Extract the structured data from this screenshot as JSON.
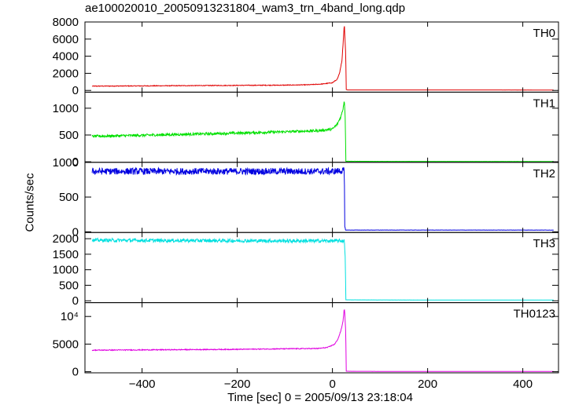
{
  "chart_data": {
    "type": "line",
    "title": "ae100020010_20050913231804_wam3_trn_4band_long.qdp",
    "xlabel": "Time [sec] 0 = 2005/09/13 23:18:04",
    "ylabel": "Counts/sec",
    "xlim": [
      -520,
      475
    ],
    "xticks": [
      -400,
      -200,
      0,
      200,
      400
    ],
    "xtick_labels": [
      "−400",
      "−200",
      "0",
      "200",
      "400"
    ],
    "grid": false,
    "panels": [
      {
        "name": "TH0",
        "color": "#e00000",
        "ylim": [
          -200,
          8000
        ],
        "yticks": [
          0,
          2000,
          4000,
          6000,
          8000
        ],
        "ytick_labels": [
          "0",
          "2000",
          "4000",
          "6000",
          "8000"
        ],
        "noise": 25,
        "series": [
          [
            -505,
            500
          ],
          [
            -400,
            530
          ],
          [
            -300,
            560
          ],
          [
            -200,
            590
          ],
          [
            -100,
            620
          ],
          [
            -50,
            660
          ],
          [
            -20,
            760
          ],
          [
            0,
            900
          ],
          [
            10,
            1300
          ],
          [
            15,
            2000
          ],
          [
            20,
            3500
          ],
          [
            23,
            6000
          ],
          [
            25,
            7800
          ],
          [
            26,
            6500
          ],
          [
            28,
            4000
          ],
          [
            29,
            100
          ],
          [
            32,
            60
          ],
          [
            100,
            60
          ],
          [
            300,
            55
          ],
          [
            465,
            50
          ]
        ]
      },
      {
        "name": "TH1",
        "color": "#00e000",
        "ylim": [
          -10,
          1300
        ],
        "yticks": [
          0,
          500,
          1000
        ],
        "ytick_labels": [
          "0",
          "500",
          "1000"
        ],
        "noise": 15,
        "series": [
          [
            -505,
            475
          ],
          [
            -400,
            495
          ],
          [
            -300,
            515
          ],
          [
            -200,
            535
          ],
          [
            -100,
            560
          ],
          [
            -30,
            580
          ],
          [
            0,
            610
          ],
          [
            10,
            700
          ],
          [
            18,
            850
          ],
          [
            22,
            980
          ],
          [
            25,
            1150
          ],
          [
            26,
            1000
          ],
          [
            27,
            800
          ],
          [
            28,
            10
          ],
          [
            100,
            8
          ],
          [
            300,
            7
          ],
          [
            465,
            6
          ]
        ]
      },
      {
        "name": "TH2",
        "color": "#0000e0",
        "ylim": [
          -10,
          1000
        ],
        "yticks": [
          0,
          500,
          1000
        ],
        "ytick_labels": [
          "0",
          "500",
          "1000"
        ],
        "noise": 30,
        "series": [
          [
            -505,
            870
          ],
          [
            -300,
            870
          ],
          [
            -100,
            870
          ],
          [
            0,
            870
          ],
          [
            25,
            880
          ],
          [
            26,
            30
          ],
          [
            27,
            25
          ],
          [
            200,
            25
          ],
          [
            465,
            25
          ]
        ]
      },
      {
        "name": "TH3",
        "color": "#00e0e0",
        "ylim": [
          -60,
          2200
        ],
        "yticks": [
          0,
          500,
          1000,
          1500,
          2000
        ],
        "ytick_labels": [
          "0",
          "500",
          "1000",
          "1500",
          "2000"
        ],
        "noise": 35,
        "series": [
          [
            -505,
            1950
          ],
          [
            -300,
            1940
          ],
          [
            -100,
            1930
          ],
          [
            0,
            1930
          ],
          [
            25,
            1930
          ],
          [
            27,
            1400
          ],
          [
            28,
            30
          ],
          [
            200,
            25
          ],
          [
            465,
            25
          ]
        ]
      },
      {
        "name": "TH0123",
        "color": "#e000e0",
        "ylim": [
          -200,
          12500
        ],
        "yticks": [
          0,
          5000,
          10000
        ],
        "ytick_labels": [
          "0",
          "5000",
          "10⁴"
        ],
        "noise": 50,
        "series": [
          [
            -505,
            3900
          ],
          [
            -400,
            3950
          ],
          [
            -300,
            4000
          ],
          [
            -200,
            4050
          ],
          [
            -100,
            4150
          ],
          [
            -30,
            4200
          ],
          [
            -10,
            4400
          ],
          [
            5,
            5000
          ],
          [
            12,
            6000
          ],
          [
            18,
            7500
          ],
          [
            22,
            9000
          ],
          [
            25,
            11500
          ],
          [
            26,
            10500
          ],
          [
            28,
            7000
          ],
          [
            29,
            80
          ],
          [
            100,
            60
          ],
          [
            300,
            55
          ],
          [
            465,
            50
          ]
        ]
      }
    ]
  }
}
